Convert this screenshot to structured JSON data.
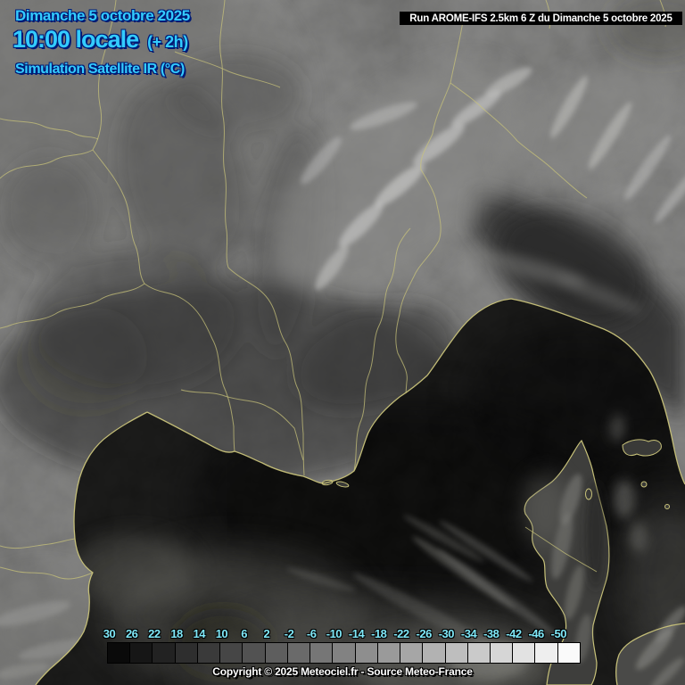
{
  "header": {
    "date_line": "Dimanche 5 octobre 2025",
    "time_line": "10:00 locale",
    "offset_label": "(+ 2h)",
    "product_line": "Simulation Satellite IR (°C)",
    "text_color": "#33ccff"
  },
  "run_banner": {
    "text": "Run AROME-IFS 2.5km 6 Z du Dimanche 5 octobre 2025",
    "bg": "#000000",
    "fg": "#ffffff"
  },
  "scale": {
    "unit": "°C",
    "labels": [
      "30",
      "26",
      "22",
      "18",
      "14",
      "10",
      "6",
      "2",
      "-2",
      "-6",
      "-10",
      "-14",
      "-18",
      "-22",
      "-26",
      "-30",
      "-34",
      "-38",
      "-42",
      "-46",
      "-50"
    ],
    "swatches": [
      "#0a0a0a",
      "#161616",
      "#222222",
      "#2e2e2e",
      "#3a3a3a",
      "#464646",
      "#525252",
      "#5e5e5e",
      "#6a6a6a",
      "#767676",
      "#828282",
      "#8e8e8e",
      "#9a9a9a",
      "#a6a6a6",
      "#b2b2b2",
      "#bebebe",
      "#cacaca",
      "#d6d6d6",
      "#e2e2e2",
      "#eeeeee",
      "#fafafa"
    ],
    "label_color": "#7fe8f8"
  },
  "footer": {
    "text": "Copyright © 2025 Meteociel.fr - Source Meteo-France"
  },
  "map": {
    "land_color": "#565654",
    "sea_color": "#111110",
    "border_color": "#c9c37a"
  }
}
